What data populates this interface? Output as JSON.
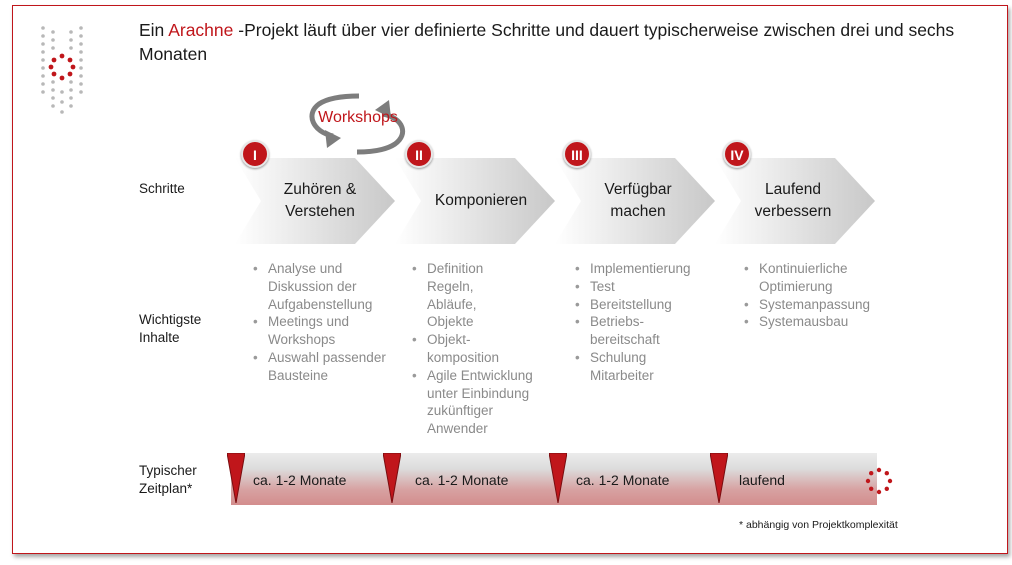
{
  "title": {
    "pre": "Ein ",
    "accent": "Arachne",
    "post": " -Projekt läuft über vier definierte Schritte und dauert typischerweise zwischen drei und sechs Monaten"
  },
  "workshops_label": "Workshops",
  "row_labels": {
    "steps": "Schritte",
    "contents": "Wichtigste Inhalte",
    "timeline": "Typischer Zeitplan*"
  },
  "steps": [
    {
      "numeral": "I",
      "label_lines": [
        "Zuhören &",
        "Verstehen"
      ],
      "contents": [
        "Analyse und Diskussion der Aufgabenstellung",
        "Meetings und Workshops",
        "Auswahl passender Bausteine"
      ],
      "duration": "ca. 1-2 Monate"
    },
    {
      "numeral": "II",
      "label_lines": [
        "Komponieren"
      ],
      "contents": [
        "Definition Regeln, Abläufe, Objekte",
        "Objekt-komposition",
        "Agile Entwicklung unter Einbindung zukünftiger Anwender"
      ],
      "duration": "ca. 1-2 Monate"
    },
    {
      "numeral": "III",
      "label_lines": [
        "Verfügbar",
        "machen"
      ],
      "contents": [
        "Implementierung",
        "Test",
        "Bereitstellung",
        "Betriebs-bereitschaft",
        "Schulung Mitarbeiter"
      ],
      "duration": "ca. 1-2 Monate"
    },
    {
      "numeral": "IV",
      "label_lines": [
        "Laufend",
        "verbessern"
      ],
      "contents": [
        "Kontinuierliche Optimierung",
        "Systemanpassung",
        "Systemausbau"
      ],
      "duration": "laufend"
    }
  ],
  "footnote": "* abhängig von Projektkomplexität",
  "colors": {
    "accent": "#c0161b",
    "chevron_dark": "#c8c8c8",
    "chevron_light": "#ffffff",
    "bullet_text": "#8a8a8a"
  },
  "icons": {
    "logo": "dotted-spider-logo",
    "cycle": "circular-arrows-icon",
    "timeline_end": "dotted-circle-icon"
  }
}
